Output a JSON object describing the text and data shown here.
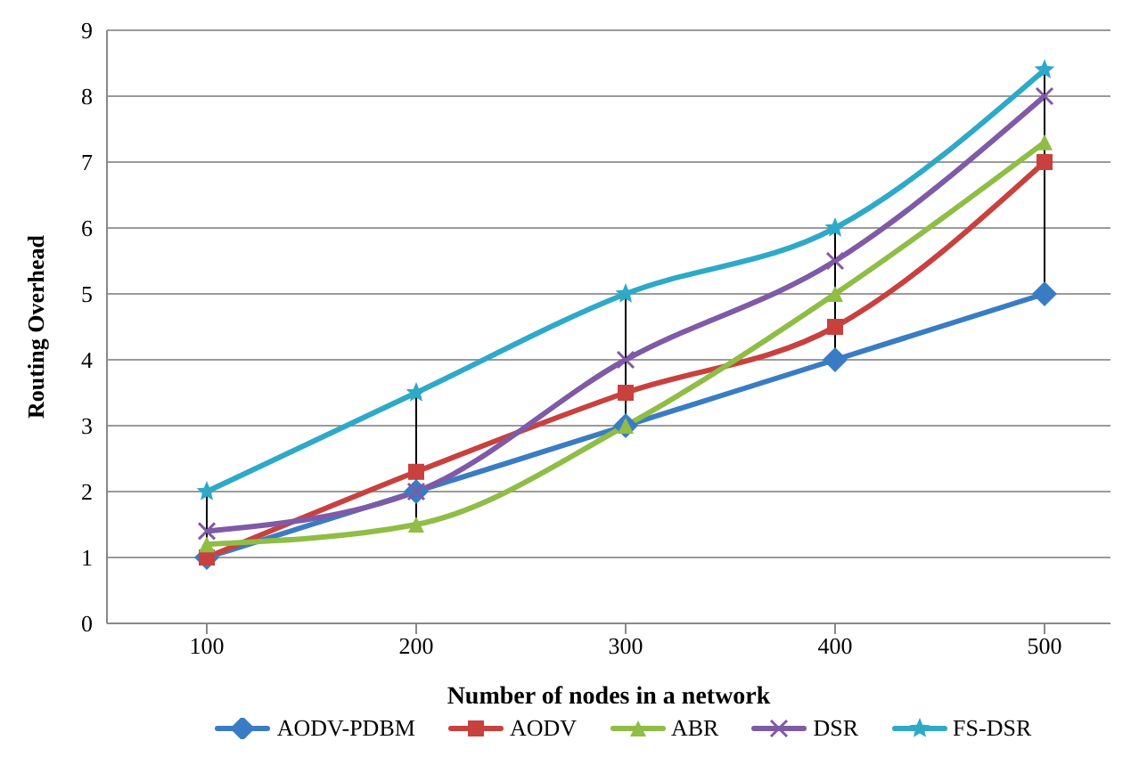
{
  "chart_data": {
    "type": "line",
    "xlabel": "Number of nodes in a network",
    "ylabel": "Routing Overhead",
    "categories": [
      "100",
      "200",
      "300",
      "400",
      "500"
    ],
    "series": [
      {
        "name": "AODV-PDBM",
        "color": "#3a7cc4",
        "marker": "diamond",
        "values": [
          1,
          2,
          3,
          4,
          5
        ]
      },
      {
        "name": "AODV",
        "color": "#c8413e",
        "marker": "square",
        "values": [
          1,
          2.3,
          3.5,
          4.5,
          7
        ]
      },
      {
        "name": "ABR",
        "color": "#8fbd45",
        "marker": "triangle",
        "values": [
          1.2,
          1.5,
          3,
          5,
          7.3
        ]
      },
      {
        "name": "DSR",
        "color": "#7f5aa6",
        "marker": "cross",
        "values": [
          1.4,
          2,
          4,
          5.5,
          8
        ]
      },
      {
        "name": "FS-DSR",
        "color": "#2ea9c8",
        "marker": "star",
        "values": [
          2,
          3.5,
          5,
          6,
          8.4
        ]
      }
    ],
    "ylim": [
      0,
      9
    ],
    "yticks": [
      0,
      1,
      2,
      3,
      4,
      5,
      6,
      7,
      8,
      9
    ],
    "grid": "y",
    "legend": "bottom",
    "line_style": "solid"
  }
}
